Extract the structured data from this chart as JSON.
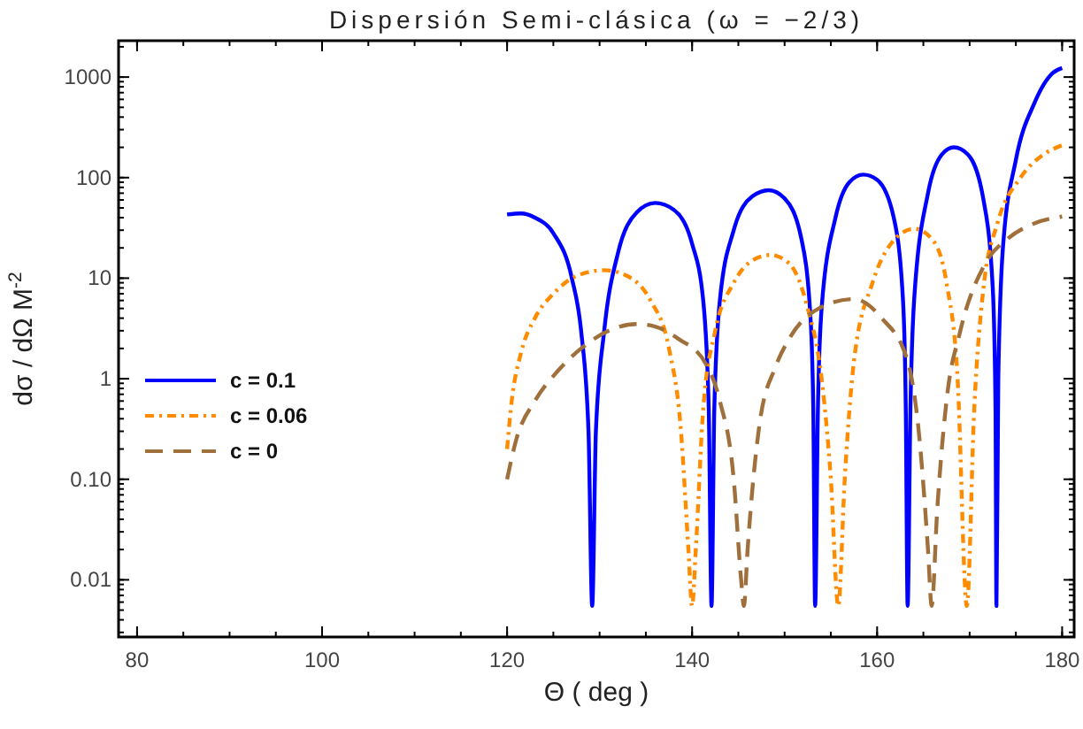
{
  "chart_data": {
    "type": "line",
    "title": "Dispersión Semi-clásica  (ω = −2/3)",
    "xlabel": "Θ  ( deg )",
    "ylabel": "dσ / dΩ  M$^{-2}$",
    "log": "y",
    "xlim": [
      78,
      181.3
    ],
    "ylim": [
      0.0027,
      2300
    ],
    "xticks": [
      80,
      100,
      120,
      140,
      160,
      180
    ],
    "yticks": [
      0.01,
      {
        "value": 0.1,
        "label": "0.10"
      },
      1,
      10,
      100,
      1000
    ],
    "grid": false,
    "legend": "left",
    "series": [
      {
        "name": "c = 0.1",
        "color": "#0000ff",
        "line_style": "solid",
        "x": [
          120,
          121.5,
          123,
          125,
          127,
          128,
          128.8,
          129.2,
          129.6,
          130.5,
          132,
          134,
          136,
          138,
          140,
          141.2,
          141.8,
          142.1,
          142.4,
          143,
          144.5,
          146.5,
          148.3,
          150,
          151.8,
          152.8,
          153.1,
          153.3,
          153.6,
          154,
          155.5,
          157,
          158.5,
          160,
          161.8,
          162.8,
          163.1,
          163.3,
          163.6,
          164,
          165.5,
          167,
          168.3,
          169.8,
          171.5,
          172.5,
          172.8,
          172.9,
          173.1,
          173.6,
          175,
          177,
          179,
          180
        ],
        "values": [
          43,
          44,
          40,
          28,
          10,
          3,
          0.3,
          0.0055,
          0.3,
          3,
          18,
          45,
          56,
          48,
          22,
          6,
          0.5,
          0.0055,
          0.5,
          6,
          30,
          65,
          75,
          62,
          25,
          4,
          0.5,
          0.0055,
          0.5,
          5,
          40,
          90,
          107,
          95,
          40,
          6,
          0.5,
          0.0055,
          0.5,
          6,
          70,
          170,
          200,
          170,
          60,
          8,
          0.5,
          0.0055,
          1,
          20,
          150,
          550,
          1100,
          1230
        ]
      },
      {
        "name": "c = 0.06",
        "color": "#ff8c00",
        "line_style": "dotted",
        "x": [
          120,
          120.5,
          121.5,
          123,
          125,
          127.5,
          130.5,
          133,
          135.5,
          137.5,
          138.8,
          139.6,
          140,
          140.4,
          141.2,
          142.5,
          144.5,
          146.5,
          148.5,
          150.5,
          152.5,
          154,
          155,
          155.8,
          156.5,
          157.5,
          159.5,
          161.5,
          164,
          166,
          167.5,
          168.7,
          169.7,
          170.5,
          171.5,
          173,
          175.5,
          178,
          180
        ],
        "values": [
          0.2,
          0.6,
          1.8,
          4,
          7,
          10.5,
          12,
          10.5,
          6,
          2,
          0.3,
          0.02,
          0.0055,
          0.02,
          0.5,
          3,
          9,
          15,
          17,
          14,
          5,
          1,
          0.1,
          0.0055,
          0.1,
          1.5,
          9,
          22,
          31,
          24,
          9,
          1,
          0.0055,
          0.5,
          8,
          35,
          100,
          170,
          210
        ]
      },
      {
        "name": "c = 0",
        "color": "#a0703c",
        "line_style": "dashed",
        "x": [
          120,
          121,
          123,
          125.5,
          128,
          131,
          134,
          136,
          138.5,
          141.5,
          143,
          144.5,
          145.3,
          145.6,
          146,
          147.3,
          149,
          150.5,
          153.7,
          157.5,
          160.5,
          163.3,
          164.5,
          165.5,
          165.9,
          166.5,
          167.5,
          169,
          171.7,
          174.2,
          177,
          180
        ],
        "values": [
          0.1,
          0.25,
          0.6,
          1.2,
          2,
          3,
          3.5,
          3.3,
          2.5,
          1.4,
          0.6,
          0.1,
          0.01,
          0.0055,
          0.02,
          0.36,
          1.3,
          2.5,
          5,
          6.2,
          4,
          1.5,
          0.3,
          0.02,
          0.0055,
          0.05,
          0.6,
          3,
          14,
          25,
          35,
          41
        ]
      }
    ]
  }
}
